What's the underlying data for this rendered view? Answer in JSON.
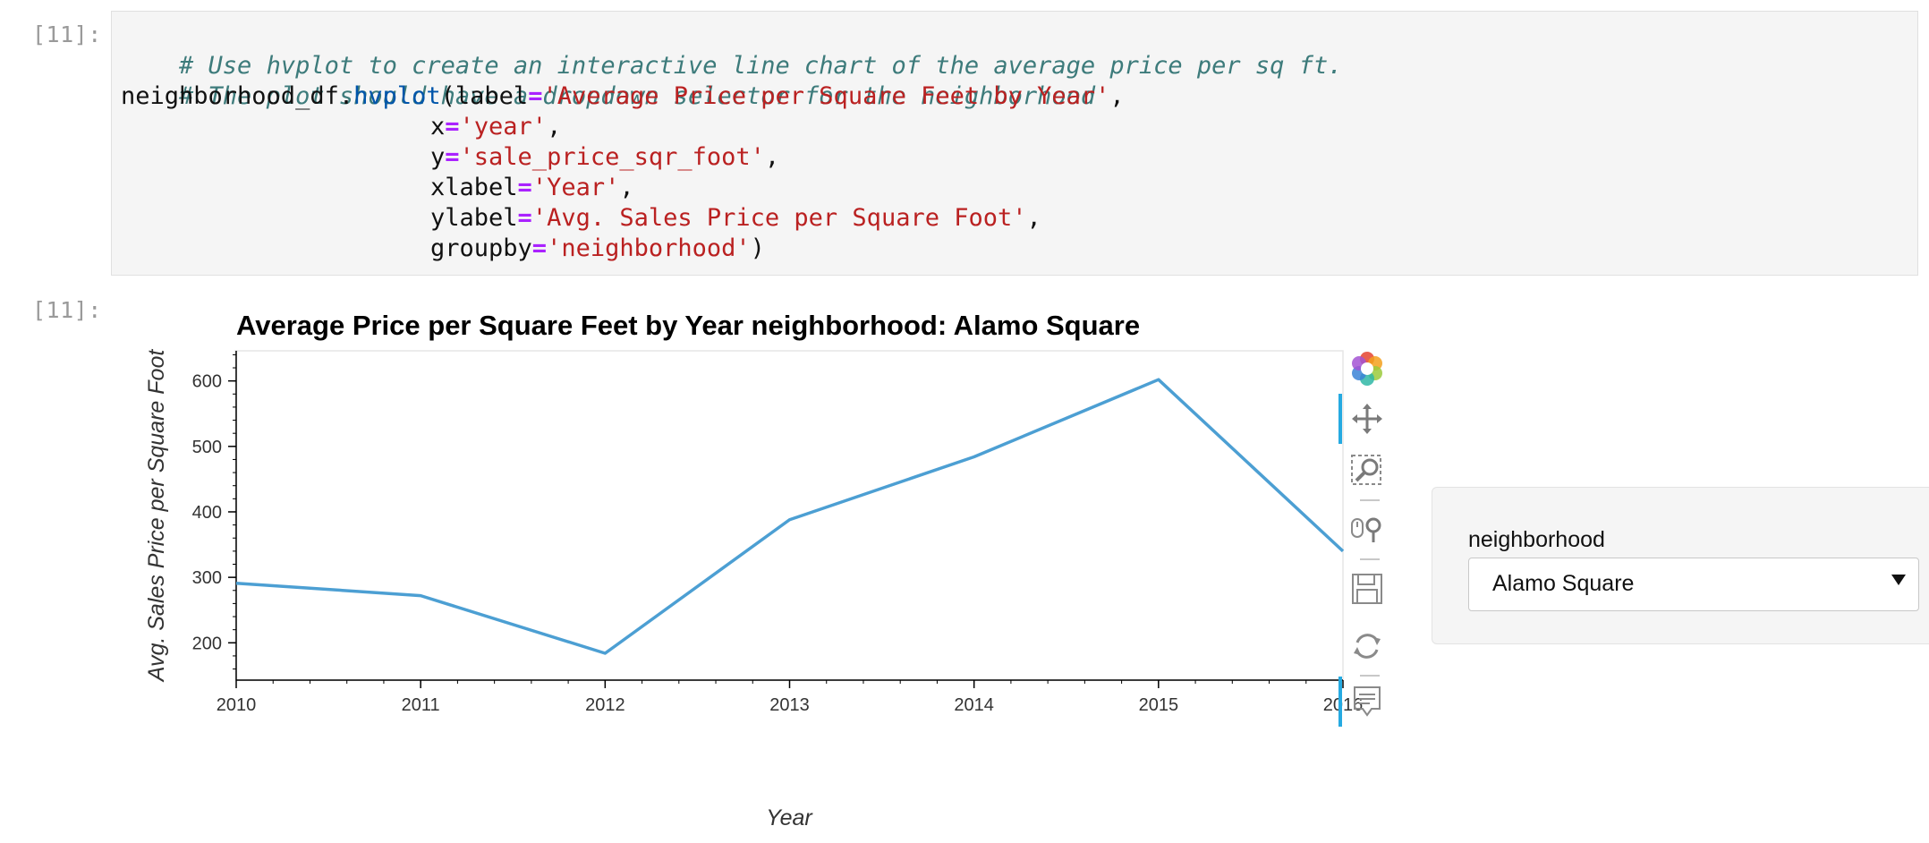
{
  "cells": {
    "input_prompt": "[11]:",
    "output_prompt": "[11]:",
    "code": {
      "comment_1": "# Use hvplot to create an interactive line chart of the average price per sq ft.",
      "comment_2": "# The plot should have a dropdown selector for the neighborhood",
      "line_3_obj": "neighborhood_df.",
      "line_3_func": "hvplot",
      "line_3_open": "(label",
      "line_3_str": "'Average Price per Square Feet by Year'",
      "line_3_end": ",",
      "line_4_key": "x",
      "line_4_str": "'year'",
      "line_5_key": "y",
      "line_5_str": "'sale_price_sqr_foot'",
      "line_6_key": "xlabel",
      "line_6_str": "'Year'",
      "line_7_key": "ylabel",
      "line_7_str": "'Avg. Sales Price per Square Foot'",
      "line_8_key": "groupby",
      "line_8_str": "'neighborhood'",
      "line_8_end": ")",
      "eq": "=",
      "comma": ","
    }
  },
  "chart_data": {
    "type": "line",
    "title": "Average Price per Square Feet by Year  neighborhood: Alamo Square",
    "xlabel": "Year",
    "ylabel": "Avg. Sales Price per Square Foot",
    "x": [
      2010,
      2011,
      2012,
      2013,
      2014,
      2015,
      2016
    ],
    "series": [
      {
        "values": [
          291,
          272,
          184,
          388,
          484,
          602,
          340
        ]
      }
    ],
    "xlim": [
      2010,
      2016
    ],
    "ylim": [
      143,
      646
    ],
    "xticks": [
      "2010",
      "2011",
      "2012",
      "2013",
      "2014",
      "2015",
      "2016"
    ],
    "yticks": [
      "200",
      "300",
      "400",
      "500",
      "600"
    ],
    "grid": false,
    "line_color": "#4c9fd3"
  },
  "toolbar": {
    "items": [
      {
        "name": "bokeh-logo-icon",
        "active": false
      },
      {
        "name": "pan-tool-icon",
        "active": true
      },
      {
        "name": "box-zoom-tool-icon",
        "active": false
      },
      {
        "name": "wheel-zoom-tool-icon",
        "active": false
      },
      {
        "name": "save-tool-icon",
        "active": false
      },
      {
        "name": "reset-tool-icon",
        "active": false
      },
      {
        "name": "hover-tool-icon",
        "active": true
      }
    ]
  },
  "widget": {
    "label": "neighborhood",
    "selected": "Alamo Square"
  }
}
